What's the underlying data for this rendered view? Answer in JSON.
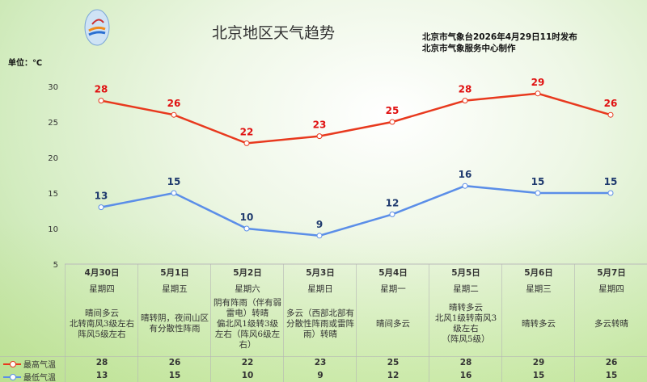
{
  "header": {
    "title": "北京地区天气趋势",
    "issuer": "北京市气象台2026年4月29日11时发布",
    "producer": "北京市气象服务中心制作",
    "unit": "单位：℃"
  },
  "chart_data": {
    "type": "line",
    "ylabel": "单位：℃",
    "ylim": [
      5,
      30
    ],
    "yticks": [
      5,
      10,
      15,
      20,
      25,
      30
    ],
    "grid": false,
    "categories": [
      "4月30日",
      "5月1日",
      "5月2日",
      "5月3日",
      "5月4日",
      "5月5日",
      "5月6日",
      "5月7日"
    ],
    "series": [
      {
        "name": "最高气温",
        "color": "#e8391e",
        "values": [
          28,
          26,
          22,
          23,
          25,
          28,
          29,
          26
        ]
      },
      {
        "name": "最低气温",
        "color": "#5b8ee8",
        "values": [
          13,
          15,
          10,
          9,
          12,
          16,
          15,
          15
        ]
      }
    ]
  },
  "table": {
    "weekdays": [
      "星期四",
      "星期五",
      "星期六",
      "星期日",
      "星期一",
      "星期二",
      "星期三",
      "星期四"
    ],
    "descriptions": [
      "晴间多云\n北转南风3级左右\n阵风5级左右",
      "晴转阴，夜间山区有分散性阵雨",
      "阴有阵雨（伴有弱雷电）转晴\n偏北风1级转3级左右（阵风6级左右）",
      "多云（西部北部有分散性阵雨或雷阵雨）转晴",
      "晴间多云",
      "晴转多云\n北风1级转南风3级左右\n（阵风5级）",
      "晴转多云",
      "多云转晴"
    ]
  },
  "legend": {
    "high": "最高气温",
    "low": "最低气温"
  },
  "colors": {
    "high": "#e8391e",
    "low": "#5b8ee8",
    "high_label": "#e01010",
    "low_label": "#1f3a6e"
  }
}
